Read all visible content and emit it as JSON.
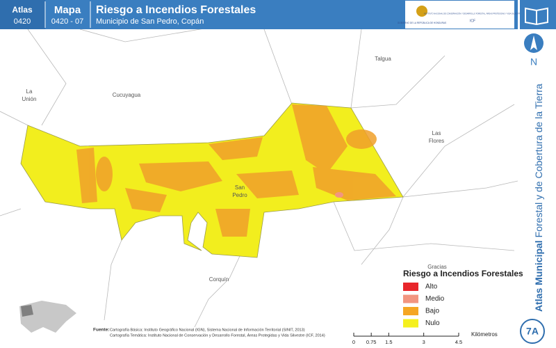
{
  "header": {
    "atlas_label": "Atlas",
    "atlas_code": "0420",
    "mapa_label": "Mapa",
    "mapa_code": "0420 - 07",
    "title": "Riesgo a Incendios Forestales",
    "subtitle": "Municipio de San Pedro, Copán",
    "logo_left": "GOBIERNO DE LA REPÚBLICA DE HONDURAS",
    "logo_right": "INSTITUTO NACIONAL DE CONSERVACIÓN Y DESARROLLO FORESTAL, ÁREAS PROTEGIDAS Y VIDA SILVESTRE",
    "logo_right_short": "ICF"
  },
  "places": [
    {
      "lines": [
        "La",
        "Unión"
      ]
    },
    {
      "lines": [
        "Cucuyagua"
      ]
    },
    {
      "lines": [
        "Talgua"
      ]
    },
    {
      "lines": [
        "Las",
        "Flores"
      ]
    },
    {
      "lines": [
        "San",
        "Pedro"
      ]
    },
    {
      "lines": [
        "Gracias"
      ]
    },
    {
      "lines": [
        "Corquín"
      ]
    }
  ],
  "legend": {
    "title": "Riesgo a Incendios Forestales",
    "items": [
      {
        "label": "Alto",
        "color": "#e8262b"
      },
      {
        "label": "Medio",
        "color": "#f29580"
      },
      {
        "label": "Bajo",
        "color": "#f5a623"
      },
      {
        "label": "Nulo",
        "color": "#f5f01e"
      }
    ]
  },
  "side": {
    "north": "N",
    "atlas_municipal": "Atlas Municipal",
    "theme": "Forestal y de Cobertura de la Tierra",
    "badge": "7A"
  },
  "scale": {
    "unit": "Kilómetros",
    "ticks": [
      0,
      0.75,
      1.5,
      3,
      4.5
    ]
  },
  "source": {
    "label": "Fuente:",
    "lines": [
      "Cartografía Básica: Instituto Geográfico Nacional (IGN), Sistema Nacional de Información Territorial (SINIT, 2013)",
      "Cartografía Temática: Instituto Nacional de Conservación y Desarrollo Forestal, Áreas Protegidas y Vida Silvestre (ICF, 2014)"
    ]
  }
}
